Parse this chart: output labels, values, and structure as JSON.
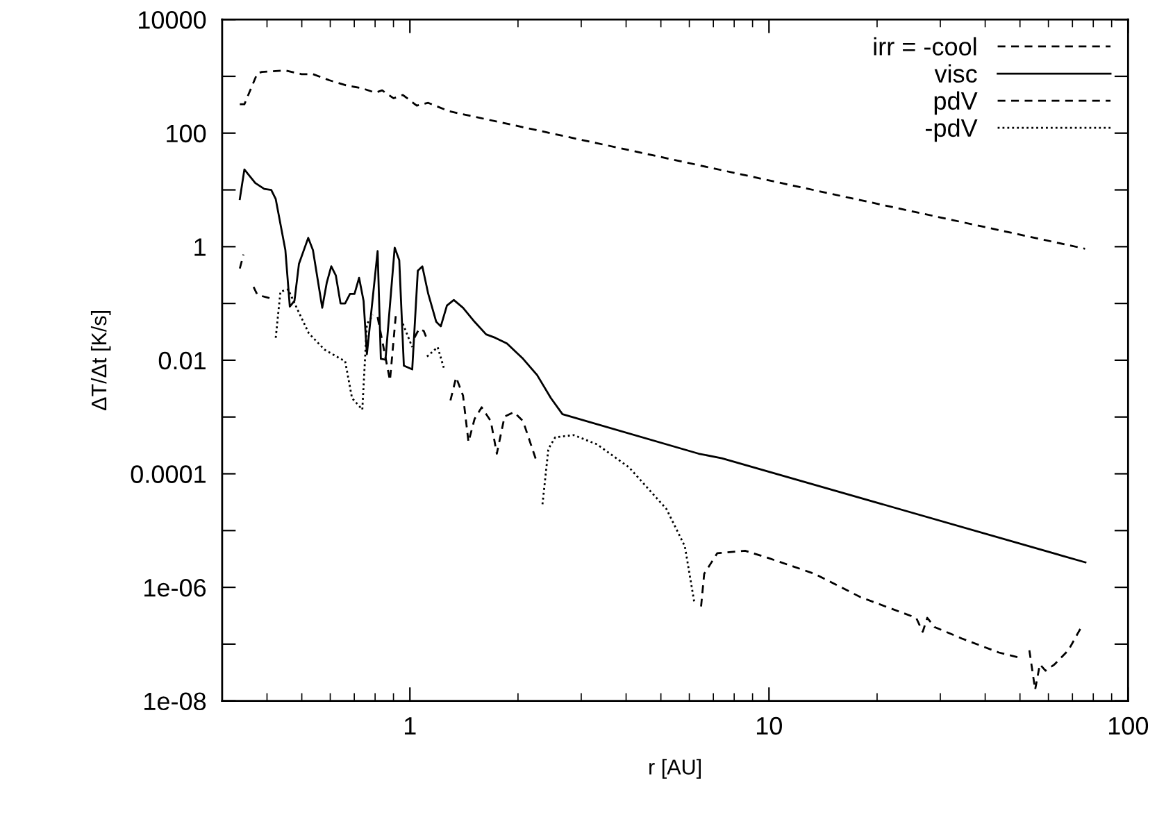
{
  "chart_data": {
    "type": "line",
    "xlabel": "r [AU]",
    "ylabel": "ΔT/Δt [K/s]",
    "log": "xy",
    "grid": false,
    "legend": "top right",
    "xlim": [
      0.3,
      100
    ],
    "ylim": [
      1e-08,
      10000
    ],
    "xticks": [
      {
        "value": 0.4,
        "label": null
      },
      {
        "value": 0.5,
        "label": null
      },
      {
        "value": 0.6,
        "label": null
      },
      {
        "value": 0.7,
        "label": null
      },
      {
        "value": 0.8,
        "label": null
      },
      {
        "value": 0.9,
        "label": null
      },
      1,
      {
        "value": 2,
        "label": null
      },
      {
        "value": 3,
        "label": null
      },
      {
        "value": 4,
        "label": null
      },
      {
        "value": 5,
        "label": null
      },
      {
        "value": 6,
        "label": null
      },
      {
        "value": 7,
        "label": null
      },
      {
        "value": 8,
        "label": null
      },
      {
        "value": 9,
        "label": null
      },
      10,
      {
        "value": 20,
        "label": null
      },
      {
        "value": 30,
        "label": null
      },
      {
        "value": 40,
        "label": null
      },
      {
        "value": 50,
        "label": null
      },
      {
        "value": 60,
        "label": null
      },
      {
        "value": 70,
        "label": null
      },
      {
        "value": 80,
        "label": null
      },
      {
        "value": 90,
        "label": null
      },
      100
    ],
    "yticks": [
      {
        "value": 1e-08,
        "label": "1e-08"
      },
      {
        "value": 1e-07,
        "label": null
      },
      {
        "value": 1e-06,
        "label": "1e-06"
      },
      {
        "value": 1e-05,
        "label": null
      },
      0.0001,
      {
        "value": 0.001,
        "label": null
      },
      0.01,
      {
        "value": 0.1,
        "label": null
      },
      1,
      {
        "value": 10,
        "label": null
      },
      100,
      {
        "value": 1000,
        "label": null
      },
      10000
    ],
    "series": [
      {
        "name": "irr = -cool",
        "color": "#000000",
        "line_style": "dashed",
        "x": [
          0.336,
          0.346,
          0.376,
          0.387,
          0.45,
          0.499,
          0.537,
          0.596,
          0.67,
          0.733,
          0.8,
          0.837,
          0.901,
          0.956,
          1.045,
          1.125,
          1.286,
          75.9
        ],
        "values": [
          323,
          323,
          1132,
          1197,
          1267,
          1094,
          1094,
          855,
          683,
          623,
          515,
          566,
          411,
          470,
          305,
          341,
          243,
          0.92
        ]
      },
      {
        "name": "visc",
        "color": "#000000",
        "line_style": "solid",
        "x": [
          0.336,
          0.346,
          0.371,
          0.393,
          0.411,
          0.423,
          0.45,
          0.463,
          0.477,
          0.491,
          0.521,
          0.537,
          0.57,
          0.587,
          0.604,
          0.622,
          0.641,
          0.66,
          0.681,
          0.701,
          0.722,
          0.743,
          0.759,
          0.813,
          0.83,
          0.855,
          0.907,
          0.934,
          0.962,
          1.015,
          1.052,
          1.083,
          1.125,
          1.184,
          1.219,
          1.268,
          1.325,
          1.406,
          1.514,
          1.63,
          1.73,
          1.863,
          2.066,
          2.26,
          2.47,
          2.66,
          6.37,
          7.39,
          76.1
        ],
        "values": [
          6.9,
          22.9,
          13.2,
          10.4,
          10.0,
          6.9,
          0.87,
          0.088,
          0.111,
          0.5,
          1.43,
          0.87,
          0.084,
          0.235,
          0.45,
          0.31,
          0.1,
          0.1,
          0.147,
          0.147,
          0.283,
          0.111,
          0.0128,
          0.84,
          0.0106,
          0.0102,
          0.96,
          0.58,
          0.008,
          0.0069,
          0.376,
          0.45,
          0.147,
          0.0475,
          0.0395,
          0.092,
          0.115,
          0.084,
          0.0475,
          0.0286,
          0.0248,
          0.0198,
          0.0106,
          0.0055,
          0.00215,
          0.00112,
          0.000226,
          0.000188,
          2.75e-06
        ]
      },
      {
        "name": "pdV",
        "color": "#000000",
        "line_style": "dashed",
        "x": [
          0.336,
          0.344,
          0.355,
          0.367,
          0.376,
          0.411,
          0.6,
          0.813,
          0.88,
          0.915,
          0.99,
          1.03,
          1.061,
          1.093,
          1.12,
          1.2,
          1.297,
          1.345,
          1.406,
          1.456,
          1.514,
          1.584,
          1.68,
          1.746,
          1.835,
          1.948,
          2.066,
          2.26,
          4.0,
          6.47,
          6.6,
          7.18,
          8.58,
          9.94,
          13.4,
          18.0,
          25.7,
          26.8,
          27.6,
          28.9,
          34.5,
          43.7,
          49.2,
          51.0,
          53.1,
          55.1,
          56.8,
          58.9,
          62.4,
          68.2,
          74.1
        ],
        "values": [
          0.413,
          0.726,
          null,
          0.195,
          0.142,
          0.122,
          null,
          0.0576,
          0.0044,
          0.069,
          null,
          0.025,
          0.0359,
          0.0328,
          0.022,
          null,
          0.00196,
          0.005,
          0.00237,
          0.000363,
          0.000925,
          0.00148,
          0.000845,
          0.000226,
          0.00102,
          0.00122,
          0.000845,
          0.000156,
          null,
          4.6e-07,
          1.73e-06,
          4e-06,
          4.4e-06,
          3.3e-06,
          1.73e-06,
          6.7e-07,
          2.9e-07,
          1.65e-07,
          2.9e-07,
          2e-07,
          1.25e-07,
          7.1e-08,
          5.9e-08,
          null,
          7.8e-08,
          1.58e-08,
          4.4e-08,
          3.4e-08,
          4.4e-08,
          7.8e-08,
          2e-07
        ]
      },
      {
        "name": "-pdV",
        "color": "#000000",
        "line_style": "dotted",
        "x": [
          0.423,
          0.436,
          0.458,
          0.491,
          0.523,
          0.578,
          0.641,
          0.66,
          0.69,
          0.737,
          0.759,
          0.789,
          0.9,
          0.956,
          1.015,
          1.07,
          1.116,
          1.195,
          1.249,
          1.8,
          2.34,
          2.43,
          2.54,
          2.86,
          3.32,
          4.08,
          5.18,
          5.83,
          6.19
        ],
        "values": [
          0.0248,
          0.161,
          0.177,
          0.069,
          0.0298,
          0.0154,
          0.0106,
          0.0097,
          0.00215,
          0.00135,
          0.0435,
          0.063,
          null,
          0.044,
          0.017,
          null,
          0.0116,
          0.017,
          0.0066,
          null,
          2.9e-05,
          0.000274,
          0.00044,
          0.00048,
          0.00033,
          0.000129,
          2.4e-05,
          5.3e-06,
          5.6e-07
        ]
      }
    ]
  }
}
